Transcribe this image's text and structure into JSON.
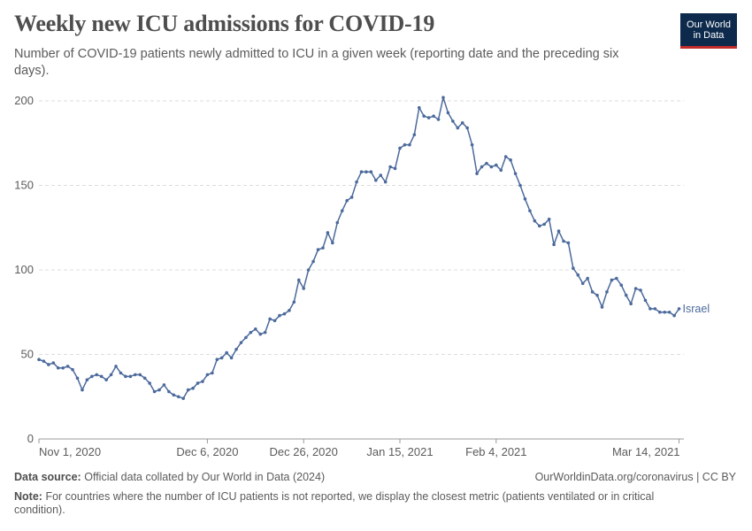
{
  "header": {
    "title": "Weekly new ICU admissions for COVID-19",
    "subtitle": "Number of COVID-19 patients newly admitted to ICU in a given week (reporting date and the preceding six days).",
    "logo_line1": "Our World",
    "logo_line2": "in Data"
  },
  "footer": {
    "source_label": "Data source:",
    "source_text": "Official data collated by Our World in Data (2024)",
    "site_text": "OurWorldinData.org/coronavirus",
    "license_text": "| CC BY",
    "note_label": "Note:",
    "note_text": "For countries where the number of ICU patients is not reported, we display the closest metric (patients ventilated or in critical condition)."
  },
  "colors": {
    "series": "#4c6a9c",
    "grid": "#dddddd",
    "axis": "#999999",
    "text": "#5b5b5b"
  },
  "chart_data": {
    "type": "line",
    "title": "Weekly new ICU admissions for COVID-19",
    "xlabel": "",
    "ylabel": "",
    "ylim": [
      0,
      200
    ],
    "yticks": [
      0,
      50,
      100,
      150,
      200
    ],
    "ytick_labels": [
      "0",
      "50",
      "100",
      "150",
      "200"
    ],
    "xlim_days": [
      0,
      134
    ],
    "xticks": [
      {
        "day": 0,
        "label": "Nov 1, 2020"
      },
      {
        "day": 35,
        "label": "Dec 6, 2020"
      },
      {
        "day": 55,
        "label": "Dec 26, 2020"
      },
      {
        "day": 75,
        "label": "Jan 15, 2021"
      },
      {
        "day": 95,
        "label": "Feb 4, 2021"
      },
      {
        "day": 133,
        "label": "Mar 14, 2021"
      }
    ],
    "grid": true,
    "start_date": "2020-10-30",
    "series": [
      {
        "name": "Israel",
        "values": [
          47,
          46,
          44,
          45,
          42,
          42,
          43,
          41,
          36,
          29,
          35,
          37,
          38,
          37,
          35,
          38,
          43,
          39,
          37,
          37,
          38,
          38,
          36,
          33,
          28,
          29,
          32,
          28,
          26,
          25,
          24,
          29,
          30,
          33,
          34,
          38,
          39,
          47,
          48,
          51,
          48,
          53,
          57,
          60,
          63,
          65,
          62,
          63,
          71,
          70,
          73,
          74,
          76,
          81,
          94,
          89,
          100,
          105,
          112,
          113,
          122,
          116,
          128,
          135,
          141,
          143,
          152,
          158,
          158,
          158,
          153,
          156,
          152,
          161,
          160,
          172,
          174,
          174,
          180,
          196,
          191,
          190,
          191,
          189,
          202,
          193,
          188,
          184,
          187,
          184,
          174,
          157,
          161,
          163,
          161,
          162,
          159,
          167,
          165,
          157,
          150,
          142,
          135,
          129,
          126,
          127,
          130,
          115,
          123,
          117,
          116,
          101,
          97,
          92,
          95,
          87,
          85,
          78,
          87,
          94,
          95,
          91,
          85,
          80,
          89,
          88,
          82,
          77,
          77,
          75,
          75,
          75,
          73,
          77
        ]
      }
    ]
  }
}
